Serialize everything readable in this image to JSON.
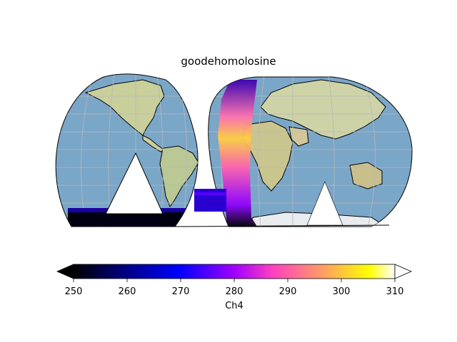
{
  "title": "goodehomolosine",
  "projection": "Goode Homolosine (interrupted)",
  "colormap": {
    "name": "gnuplot2",
    "stops": [
      "#000000",
      "#0000ff",
      "#8a00ff",
      "#ff40c0",
      "#ffa060",
      "#ffff00",
      "#ffffff"
    ]
  },
  "colorbar": {
    "label": "Ch4",
    "min": 250,
    "max": 310,
    "ticks": [
      "250",
      "260",
      "270",
      "280",
      "290",
      "300",
      "310"
    ],
    "extend": "both"
  },
  "colors": {
    "ocean": "#7aa6c8",
    "land": "#c7d3a0",
    "coast": "#000000",
    "grid": "#b8b8b8"
  }
}
